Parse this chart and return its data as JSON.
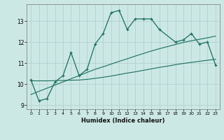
{
  "xlabel": "Humidex (Indice chaleur)",
  "x_values": [
    0,
    1,
    2,
    3,
    4,
    5,
    6,
    7,
    8,
    9,
    10,
    11,
    12,
    13,
    14,
    15,
    16,
    17,
    18,
    19,
    20,
    21,
    22,
    23
  ],
  "line1_y": [
    10.2,
    9.2,
    9.3,
    10.1,
    10.4,
    11.5,
    10.4,
    10.7,
    11.9,
    12.4,
    13.4,
    13.5,
    12.6,
    13.1,
    13.1,
    13.1,
    12.6,
    null,
    12.0,
    12.1,
    12.4,
    11.9,
    12.0,
    10.9
  ],
  "line2_y": [
    10.15,
    10.15,
    10.15,
    10.16,
    10.17,
    10.18,
    10.19,
    10.22,
    10.27,
    10.32,
    10.38,
    10.45,
    10.52,
    10.58,
    10.65,
    10.72,
    10.79,
    10.85,
    10.92,
    10.98,
    11.03,
    11.08,
    11.13,
    11.18
  ],
  "line3_y": [
    9.5,
    9.65,
    9.8,
    9.95,
    10.1,
    10.25,
    10.4,
    10.55,
    10.7,
    10.82,
    10.95,
    11.08,
    11.2,
    11.33,
    11.45,
    11.57,
    11.68,
    11.78,
    11.88,
    11.98,
    12.06,
    12.13,
    12.2,
    12.28
  ],
  "bg_color": "#cce8e4",
  "grid_color": "#b0cccc",
  "line_color": "#1a6e5e",
  "xlim": [
    -0.5,
    23.5
  ],
  "ylim": [
    8.8,
    13.8
  ],
  "yticks": [
    9,
    10,
    11,
    12,
    13
  ],
  "xticks": [
    0,
    1,
    2,
    3,
    4,
    5,
    6,
    7,
    8,
    9,
    10,
    11,
    12,
    13,
    14,
    15,
    16,
    17,
    18,
    19,
    20,
    21,
    22,
    23
  ]
}
